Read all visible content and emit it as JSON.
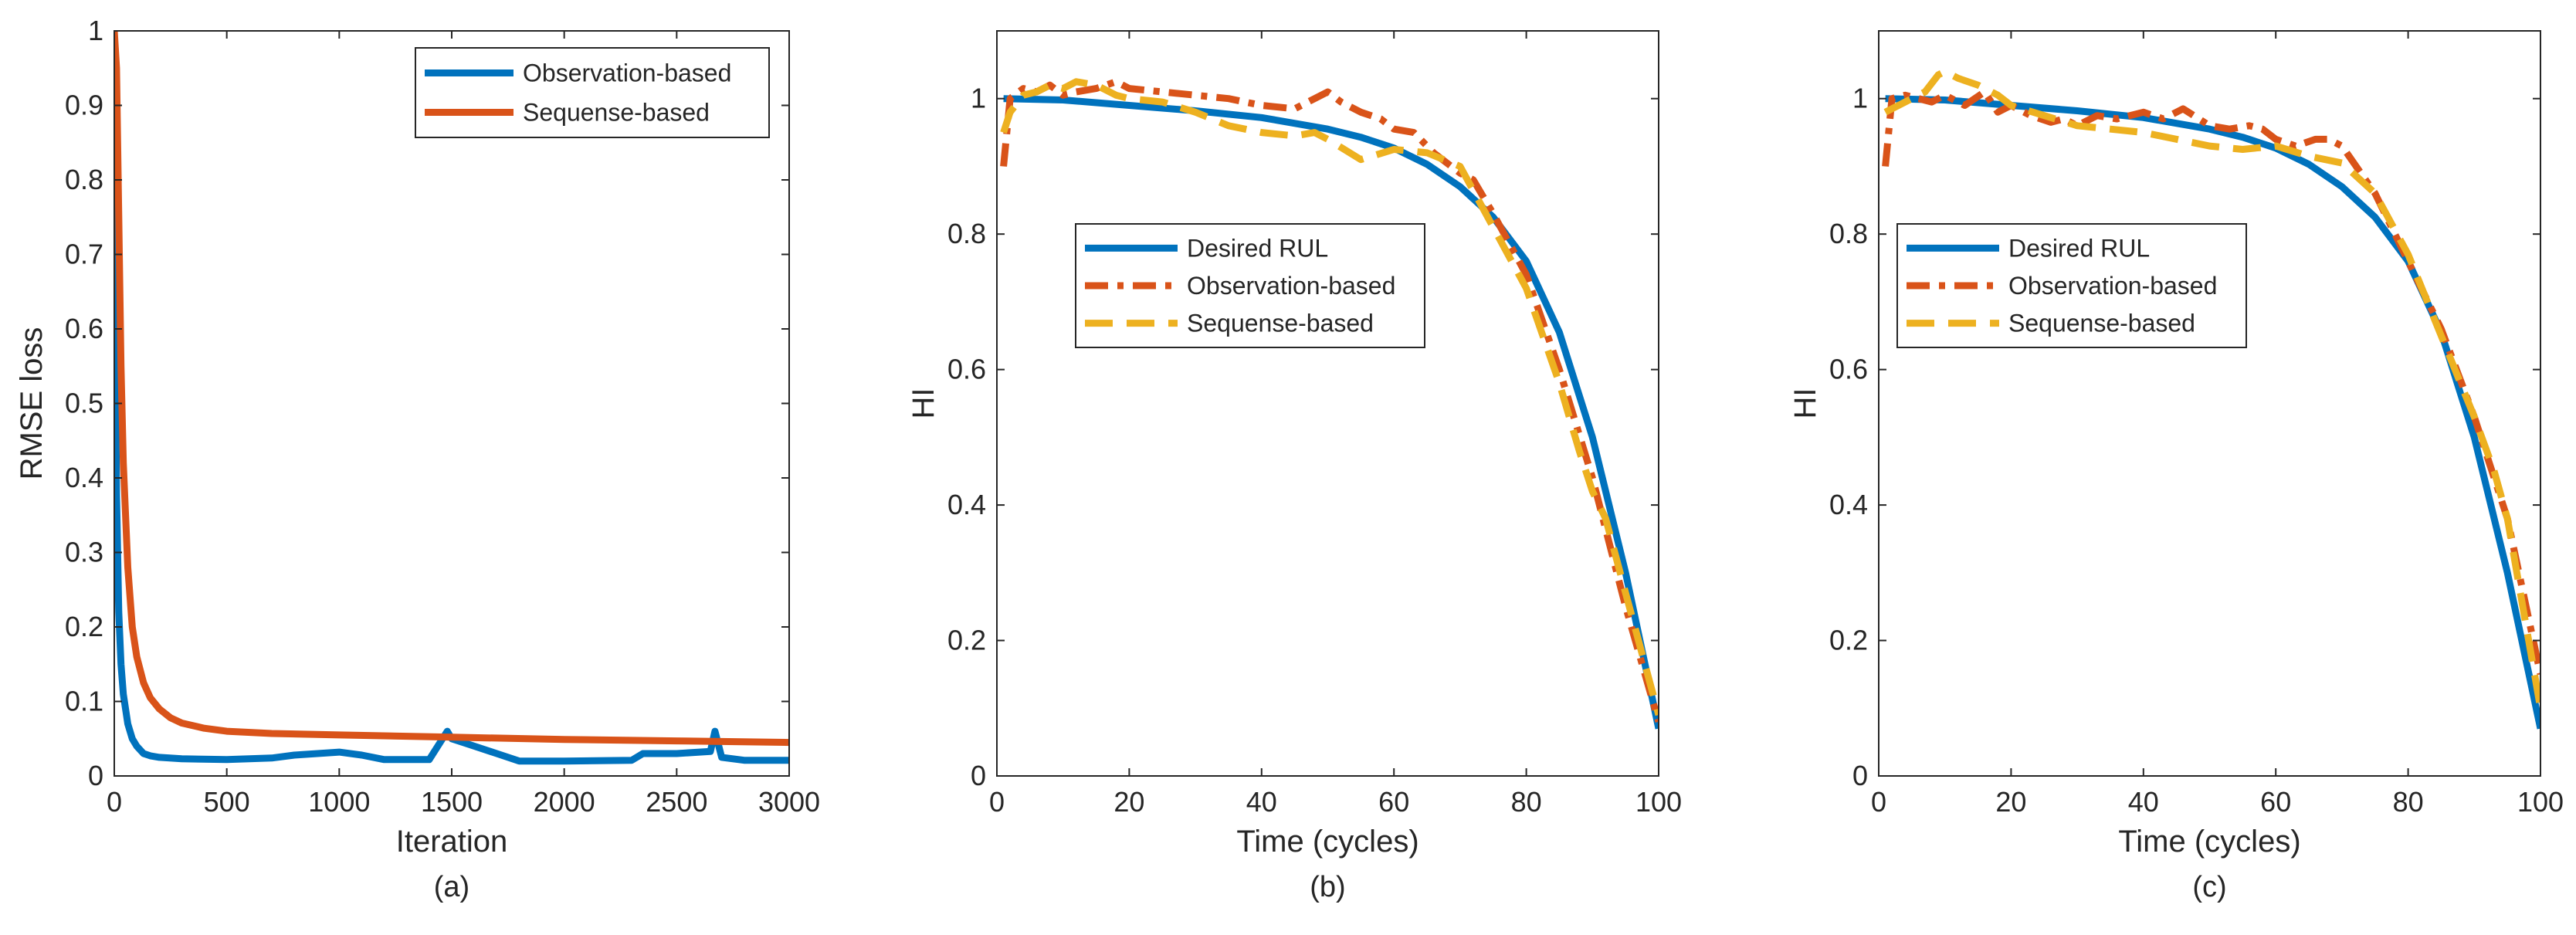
{
  "chart_data": [
    {
      "type": "line",
      "caption": "(a)",
      "xlabel": "Iteration",
      "ylabel": "RMSE loss",
      "xlim": [
        0,
        3000
      ],
      "ylim": [
        0,
        1
      ],
      "xticks": [
        0,
        500,
        1000,
        1500,
        2000,
        2500,
        3000
      ],
      "yticks": [
        0,
        0.1,
        0.2,
        0.3,
        0.4,
        0.5,
        0.6,
        0.7,
        0.8,
        0.9,
        1
      ],
      "legend_position": "top-right",
      "series": [
        {
          "name": "Observation-based",
          "color": "#0072BD",
          "style": "solid",
          "x": [
            0,
            5,
            10,
            20,
            30,
            40,
            60,
            80,
            100,
            130,
            160,
            200,
            300,
            500,
            700,
            800,
            1000,
            1100,
            1200,
            1400,
            1480,
            1500,
            1550,
            1600,
            1700,
            1800,
            2000,
            2300,
            2350,
            2500,
            2650,
            2670,
            2700,
            2800,
            3000
          ],
          "y": [
            0.77,
            0.55,
            0.38,
            0.22,
            0.15,
            0.11,
            0.07,
            0.05,
            0.04,
            0.03,
            0.027,
            0.025,
            0.023,
            0.022,
            0.024,
            0.028,
            0.032,
            0.028,
            0.022,
            0.022,
            0.06,
            0.05,
            0.045,
            0.04,
            0.03,
            0.02,
            0.02,
            0.021,
            0.03,
            0.03,
            0.033,
            0.06,
            0.025,
            0.021,
            0.021
          ]
        },
        {
          "name": "Sequense-based",
          "color": "#D95319",
          "style": "solid",
          "x": [
            0,
            10,
            20,
            30,
            40,
            60,
            80,
            100,
            130,
            160,
            200,
            250,
            300,
            400,
            500,
            700,
            1000,
            1500,
            2000,
            2500,
            3000
          ],
          "y": [
            1.0,
            0.95,
            0.75,
            0.55,
            0.42,
            0.28,
            0.2,
            0.16,
            0.125,
            0.105,
            0.09,
            0.078,
            0.071,
            0.064,
            0.06,
            0.057,
            0.055,
            0.052,
            0.049,
            0.047,
            0.045
          ]
        }
      ]
    },
    {
      "type": "line",
      "caption": "(b)",
      "xlabel": "Time (cycles)",
      "ylabel": "HI",
      "xlim": [
        0,
        100
      ],
      "ylim": [
        0,
        1.1
      ],
      "xticks": [
        0,
        20,
        40,
        60,
        80,
        100
      ],
      "yticks": [
        0,
        0.2,
        0.4,
        0.6,
        0.8,
        1
      ],
      "legend_position": "center-left",
      "series": [
        {
          "name": "Desired RUL",
          "color": "#0072BD",
          "style": "solid",
          "x": [
            1,
            10,
            20,
            30,
            40,
            50,
            55,
            60,
            65,
            70,
            75,
            80,
            85,
            90,
            95,
            100
          ],
          "y": [
            1.0,
            0.998,
            0.99,
            0.982,
            0.972,
            0.955,
            0.943,
            0.927,
            0.903,
            0.87,
            0.825,
            0.76,
            0.655,
            0.5,
            0.3,
            0.07
          ]
        },
        {
          "name": "Observation-based",
          "color": "#D95319",
          "style": "dashdot",
          "x": [
            1,
            2,
            4,
            6,
            8,
            10,
            12,
            15,
            18,
            20,
            25,
            30,
            35,
            40,
            45,
            48,
            50,
            52,
            55,
            58,
            60,
            63,
            66,
            70,
            72,
            75,
            80,
            85,
            90,
            95,
            100
          ],
          "y": [
            0.9,
            1.0,
            1.015,
            1.01,
            1.02,
            1.005,
            1.01,
            1.015,
            1.025,
            1.015,
            1.01,
            1.005,
            1.0,
            0.99,
            0.985,
            1.0,
            1.01,
            0.995,
            0.98,
            0.97,
            0.955,
            0.95,
            0.92,
            0.89,
            0.88,
            0.83,
            0.74,
            0.6,
            0.44,
            0.25,
            0.08
          ]
        },
        {
          "name": "Sequense-based",
          "color": "#EDB120",
          "style": "dashed",
          "x": [
            1,
            2,
            4,
            6,
            8,
            10,
            12,
            15,
            18,
            20,
            25,
            30,
            35,
            40,
            45,
            48,
            50,
            55,
            60,
            65,
            70,
            75,
            80,
            85,
            88,
            90,
            92,
            95,
            100
          ],
          "y": [
            0.95,
            0.98,
            1.005,
            1.01,
            1.02,
            1.015,
            1.025,
            1.02,
            1.005,
            1.0,
            0.995,
            0.98,
            0.96,
            0.95,
            0.945,
            0.95,
            0.94,
            0.91,
            0.925,
            0.92,
            0.9,
            0.81,
            0.72,
            0.58,
            0.48,
            0.42,
            0.38,
            0.27,
            0.09
          ]
        }
      ]
    },
    {
      "type": "line",
      "caption": "(c)",
      "xlabel": "Time (cycles)",
      "ylabel": "HI",
      "xlim": [
        0,
        100
      ],
      "ylim": [
        0,
        1.1
      ],
      "xticks": [
        0,
        20,
        40,
        60,
        80,
        100
      ],
      "yticks": [
        0,
        0.2,
        0.4,
        0.6,
        0.8,
        1
      ],
      "legend_position": "top-left",
      "series": [
        {
          "name": "Desired RUL",
          "color": "#0072BD",
          "style": "solid",
          "x": [
            1,
            10,
            20,
            30,
            40,
            50,
            55,
            60,
            65,
            70,
            75,
            80,
            85,
            90,
            95,
            100
          ],
          "y": [
            1.0,
            0.998,
            0.99,
            0.982,
            0.972,
            0.955,
            0.943,
            0.927,
            0.903,
            0.87,
            0.825,
            0.76,
            0.655,
            0.5,
            0.3,
            0.07
          ]
        },
        {
          "name": "Observation-based",
          "color": "#D95319",
          "style": "dashdot",
          "x": [
            1,
            2,
            4,
            6,
            8,
            10,
            13,
            16,
            18,
            20,
            23,
            26,
            28,
            30,
            33,
            36,
            40,
            43,
            46,
            50,
            53,
            56,
            58,
            60,
            63,
            66,
            68,
            70,
            75,
            80,
            85,
            90,
            95,
            100
          ],
          "y": [
            0.9,
            1.0,
            1.005,
            1.0,
            0.995,
            1.005,
            0.99,
            1.01,
            0.98,
            0.99,
            0.975,
            0.965,
            0.97,
            0.96,
            0.975,
            0.97,
            0.98,
            0.97,
            0.985,
            0.96,
            0.955,
            0.96,
            0.955,
            0.94,
            0.93,
            0.94,
            0.94,
            0.93,
            0.86,
            0.76,
            0.66,
            0.53,
            0.38,
            0.15
          ]
        },
        {
          "name": "Sequense-based",
          "color": "#EDB120",
          "style": "dashed",
          "x": [
            1,
            3,
            5,
            7,
            9,
            10,
            12,
            15,
            18,
            20,
            25,
            30,
            35,
            40,
            45,
            50,
            55,
            60,
            65,
            70,
            75,
            80,
            85,
            90,
            93,
            95,
            100
          ],
          "y": [
            0.98,
            0.99,
            1.0,
            1.01,
            1.035,
            1.04,
            1.03,
            1.02,
            1.005,
            0.99,
            0.975,
            0.96,
            0.955,
            0.95,
            0.94,
            0.93,
            0.925,
            0.93,
            0.915,
            0.905,
            0.86,
            0.77,
            0.65,
            0.53,
            0.45,
            0.38,
            0.1
          ]
        }
      ]
    }
  ]
}
